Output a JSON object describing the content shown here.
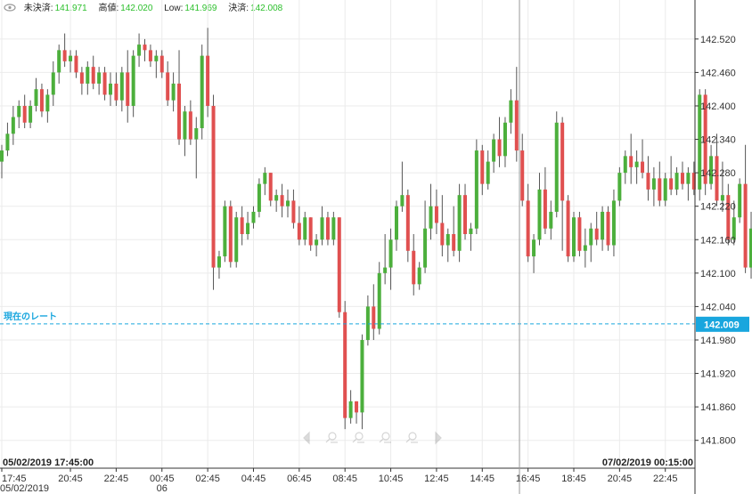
{
  "legend": {
    "unsettled_label": "未決済:",
    "unsettled_value": "141.971",
    "high_label": "高値:",
    "high_value": "142.020",
    "low_label": "Low:",
    "low_value": "141.969",
    "close_label": "決済:",
    "close_value": "142.008"
  },
  "current_rate": {
    "label": "現在のレート",
    "value": "142.009",
    "y": 142.009
  },
  "crosshair": {
    "left_date": "05/02/2019 17:45:00",
    "right_date": "07/02/2019 00:15:00"
  },
  "colors": {
    "up": "#4caf3c",
    "down": "#e05050",
    "rate": "#19a6de",
    "grid": "#ebebeb"
  },
  "toolbar_icons": [
    "arrow-left-icon",
    "zoom-in-icon",
    "zoom-out-icon",
    "zoom-reset-icon",
    "zoom-fit-icon",
    "arrow-right-icon"
  ],
  "chart_data": {
    "type": "candlestick",
    "ylim": [
      141.75,
      142.59
    ],
    "yticks": [
      "142.520",
      "142.460",
      "142.400",
      "142.340",
      "142.280",
      "142.220",
      "142.160",
      "142.100",
      "142.040",
      "141.980",
      "141.920",
      "141.860",
      "141.800"
    ],
    "xticks": [
      {
        "label": "17:45",
        "sub": "05/02/2019",
        "i": 0
      },
      {
        "label": "20:45",
        "sub": "",
        "i": 12
      },
      {
        "label": "22:45",
        "sub": "",
        "i": 20
      },
      {
        "label": "00:45",
        "sub": "06",
        "i": 28
      },
      {
        "label": "02:45",
        "sub": "",
        "i": 36
      },
      {
        "label": "04:45",
        "sub": "",
        "i": 44
      },
      {
        "label": "06:45",
        "sub": "",
        "i": 52
      },
      {
        "label": "08:45",
        "sub": "",
        "i": 60
      },
      {
        "label": "10:45",
        "sub": "",
        "i": 68
      },
      {
        "label": "12:45",
        "sub": "",
        "i": 76
      },
      {
        "label": "14:45",
        "sub": "",
        "i": 84
      },
      {
        "label": "16:45",
        "sub": "",
        "i": 92
      },
      {
        "label": "18:45",
        "sub": "",
        "i": 100
      },
      {
        "label": "20:45",
        "sub": "",
        "i": 108
      },
      {
        "label": "22:45",
        "sub": "",
        "i": 116
      }
    ],
    "crosshair_index": 90.5,
    "candles": [
      [
        142.3,
        142.33,
        142.27,
        142.32
      ],
      [
        142.32,
        142.37,
        142.31,
        142.35
      ],
      [
        142.35,
        142.4,
        142.33,
        142.38
      ],
      [
        142.38,
        142.41,
        142.36,
        142.4
      ],
      [
        142.4,
        142.42,
        142.36,
        142.37
      ],
      [
        142.37,
        142.41,
        142.36,
        142.4
      ],
      [
        142.4,
        142.45,
        142.39,
        142.43
      ],
      [
        142.43,
        142.44,
        142.38,
        142.39
      ],
      [
        142.39,
        142.43,
        142.37,
        142.42
      ],
      [
        142.42,
        142.48,
        142.4,
        142.46
      ],
      [
        142.46,
        142.51,
        142.44,
        142.5
      ],
      [
        142.5,
        142.53,
        142.47,
        142.48
      ],
      [
        142.48,
        142.5,
        142.46,
        142.49
      ],
      [
        142.49,
        142.5,
        142.45,
        142.46
      ],
      [
        142.46,
        142.47,
        142.42,
        142.44
      ],
      [
        142.44,
        142.48,
        142.42,
        142.47
      ],
      [
        142.47,
        142.49,
        142.43,
        142.44
      ],
      [
        142.44,
        142.47,
        142.42,
        142.46
      ],
      [
        142.46,
        142.47,
        142.41,
        142.42
      ],
      [
        142.42,
        142.46,
        142.4,
        142.44
      ],
      [
        142.44,
        142.46,
        142.4,
        142.41
      ],
      [
        142.41,
        142.47,
        142.39,
        142.46
      ],
      [
        142.46,
        142.5,
        142.37,
        142.4
      ],
      [
        142.4,
        142.5,
        142.38,
        142.49
      ],
      [
        142.49,
        142.53,
        142.47,
        142.51
      ],
      [
        142.51,
        142.52,
        142.48,
        142.5
      ],
      [
        142.5,
        142.51,
        142.47,
        142.48
      ],
      [
        142.48,
        142.5,
        142.45,
        142.49
      ],
      [
        142.49,
        142.5,
        142.45,
        142.46
      ],
      [
        142.46,
        142.48,
        142.4,
        142.41
      ],
      [
        142.41,
        142.46,
        142.39,
        142.44
      ],
      [
        142.44,
        142.5,
        142.33,
        142.34
      ],
      [
        142.34,
        142.4,
        142.31,
        142.39
      ],
      [
        142.39,
        142.41,
        142.33,
        142.34
      ],
      [
        142.34,
        142.38,
        142.27,
        142.36
      ],
      [
        142.36,
        142.51,
        142.34,
        142.49
      ],
      [
        142.49,
        142.54,
        142.38,
        142.4
      ],
      [
        142.4,
        142.42,
        142.07,
        142.11
      ],
      [
        142.11,
        142.14,
        142.09,
        142.13
      ],
      [
        142.13,
        142.23,
        142.12,
        142.22
      ],
      [
        142.22,
        142.23,
        142.11,
        142.12
      ],
      [
        142.12,
        142.21,
        142.11,
        142.2
      ],
      [
        142.2,
        142.22,
        142.15,
        142.17
      ],
      [
        142.17,
        142.21,
        142.16,
        142.19
      ],
      [
        142.19,
        142.22,
        142.18,
        142.21
      ],
      [
        142.21,
        142.27,
        142.2,
        142.26
      ],
      [
        142.26,
        142.29,
        142.24,
        142.28
      ],
      [
        142.28,
        142.28,
        142.22,
        142.23
      ],
      [
        142.23,
        142.25,
        142.21,
        142.24
      ],
      [
        142.24,
        142.26,
        142.2,
        142.22
      ],
      [
        142.22,
        142.25,
        142.2,
        142.23
      ],
      [
        142.23,
        142.25,
        142.18,
        142.19
      ],
      [
        142.19,
        142.22,
        142.15,
        142.16
      ],
      [
        142.16,
        142.21,
        142.15,
        142.2
      ],
      [
        142.2,
        142.2,
        142.14,
        142.15
      ],
      [
        142.15,
        142.17,
        142.13,
        142.16
      ],
      [
        142.16,
        142.22,
        142.15,
        142.2
      ],
      [
        142.2,
        142.21,
        142.15,
        142.16
      ],
      [
        142.16,
        142.21,
        142.15,
        142.2
      ],
      [
        142.2,
        142.2,
        142.02,
        142.03
      ],
      [
        142.03,
        142.05,
        141.82,
        141.84
      ],
      [
        141.84,
        141.89,
        141.83,
        141.87
      ],
      [
        141.87,
        141.87,
        141.83,
        141.85
      ],
      [
        141.85,
        141.99,
        141.82,
        141.98
      ],
      [
        141.98,
        142.06,
        141.97,
        142.04
      ],
      [
        142.04,
        142.08,
        141.98,
        142.0
      ],
      [
        142.0,
        142.12,
        141.99,
        142.1
      ],
      [
        142.1,
        142.17,
        142.08,
        142.11
      ],
      [
        142.11,
        142.18,
        142.07,
        142.16
      ],
      [
        142.16,
        142.23,
        142.14,
        142.22
      ],
      [
        142.22,
        142.3,
        142.21,
        142.24
      ],
      [
        142.24,
        142.25,
        142.12,
        142.14
      ],
      [
        142.14,
        142.17,
        142.06,
        142.08
      ],
      [
        142.08,
        142.12,
        142.07,
        142.11
      ],
      [
        142.11,
        142.23,
        142.1,
        142.18
      ],
      [
        142.18,
        142.26,
        142.16,
        142.22
      ],
      [
        142.22,
        142.25,
        142.17,
        142.19
      ],
      [
        142.19,
        142.24,
        142.13,
        142.15
      ],
      [
        142.15,
        142.18,
        142.12,
        142.17
      ],
      [
        142.17,
        142.22,
        142.13,
        142.14
      ],
      [
        142.14,
        142.26,
        142.12,
        142.24
      ],
      [
        142.24,
        142.26,
        142.16,
        142.17
      ],
      [
        142.17,
        142.19,
        142.14,
        142.18
      ],
      [
        142.18,
        142.34,
        142.17,
        142.32
      ],
      [
        142.32,
        142.33,
        142.24,
        142.26
      ],
      [
        142.26,
        142.32,
        142.25,
        142.3
      ],
      [
        142.3,
        142.35,
        142.28,
        142.34
      ],
      [
        142.34,
        142.38,
        142.29,
        142.31
      ],
      [
        142.31,
        142.38,
        142.29,
        142.37
      ],
      [
        142.37,
        142.43,
        142.35,
        142.41
      ],
      [
        142.41,
        142.47,
        142.3,
        142.32
      ],
      [
        142.32,
        142.35,
        142.22,
        142.23
      ],
      [
        142.23,
        142.26,
        142.12,
        142.13
      ],
      [
        142.13,
        142.17,
        142.1,
        142.16
      ],
      [
        142.16,
        142.28,
        142.15,
        142.25
      ],
      [
        142.25,
        142.29,
        142.17,
        142.18
      ],
      [
        142.18,
        142.23,
        142.16,
        142.21
      ],
      [
        142.21,
        142.39,
        142.2,
        142.37
      ],
      [
        142.37,
        142.38,
        142.14,
        142.23
      ],
      [
        142.23,
        142.24,
        142.12,
        142.13
      ],
      [
        142.13,
        142.21,
        142.12,
        142.2
      ],
      [
        142.2,
        142.21,
        142.13,
        142.14
      ],
      [
        142.14,
        142.18,
        142.11,
        142.15
      ],
      [
        142.15,
        142.19,
        142.12,
        142.18
      ],
      [
        142.18,
        142.21,
        142.15,
        142.16
      ],
      [
        142.16,
        142.22,
        142.14,
        142.21
      ],
      [
        142.21,
        142.22,
        142.14,
        142.15
      ],
      [
        142.15,
        142.25,
        142.13,
        142.23
      ],
      [
        142.23,
        142.29,
        142.22,
        142.28
      ],
      [
        142.28,
        142.32,
        142.26,
        142.31
      ],
      [
        142.31,
        142.35,
        142.26,
        142.29
      ],
      [
        142.29,
        142.32,
        142.26,
        142.3
      ],
      [
        142.3,
        142.34,
        142.27,
        142.28
      ],
      [
        142.28,
        142.31,
        142.23,
        142.25
      ],
      [
        142.25,
        142.29,
        142.22,
        142.27
      ],
      [
        142.27,
        142.3,
        142.22,
        142.23
      ],
      [
        142.23,
        142.28,
        142.22,
        142.27
      ],
      [
        142.27,
        142.31,
        142.24,
        142.25
      ],
      [
        142.25,
        142.29,
        142.24,
        142.28
      ],
      [
        142.28,
        142.3,
        142.25,
        142.26
      ],
      [
        142.26,
        142.29,
        142.23,
        142.28
      ],
      [
        142.28,
        142.3,
        142.24,
        142.25
      ],
      [
        142.25,
        142.43,
        142.23,
        142.42
      ],
      [
        142.42,
        142.43,
        142.24,
        142.26
      ],
      [
        142.26,
        142.33,
        142.25,
        142.31
      ],
      [
        142.31,
        142.35,
        142.22,
        142.23
      ],
      [
        142.23,
        142.3,
        142.21,
        142.24
      ],
      [
        142.24,
        142.26,
        142.15,
        142.16
      ],
      [
        142.16,
        142.23,
        142.15,
        142.2
      ],
      [
        142.2,
        142.27,
        142.19,
        142.26
      ],
      [
        142.26,
        142.33,
        142.1,
        142.11
      ],
      [
        142.11,
        142.21,
        142.09,
        142.18
      ]
    ]
  }
}
